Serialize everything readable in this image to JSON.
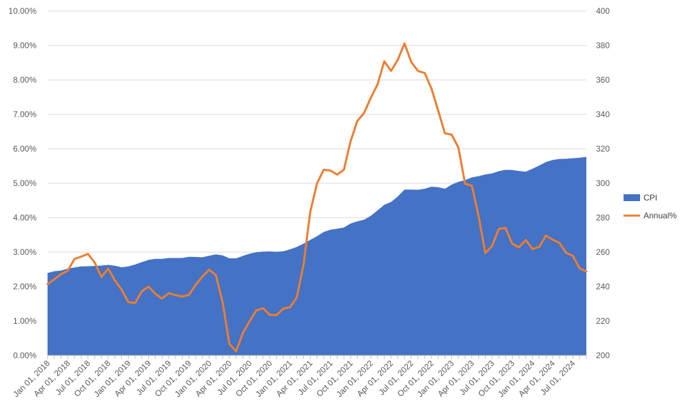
{
  "chart_data": {
    "type": "area",
    "x": [
      "Jan 01, 2018",
      "Feb 01, 2018",
      "Mar 01, 2018",
      "Apr 01, 2018",
      "May 01, 2018",
      "Jun 01, 2018",
      "Jul 01, 2018",
      "Aug 01, 2018",
      "Sep 01, 2018",
      "Oct 01, 2018",
      "Nov 01, 2018",
      "Dec 01, 2018",
      "Jan 01, 2019",
      "Feb 01, 2019",
      "Mar 01, 2019",
      "Apr 01, 2019",
      "May 01, 2019",
      "Jun 01, 2019",
      "Jul 01, 2019",
      "Aug 01, 2019",
      "Sep 01, 2019",
      "Oct 01, 2019",
      "Nov 01, 2019",
      "Dec 01, 2019",
      "Jan 01, 2020",
      "Feb 01, 2020",
      "Mar 01, 2020",
      "Apr 01, 2020",
      "May 01, 2020",
      "Jun 01, 2020",
      "Jul 01, 2020",
      "Aug 01, 2020",
      "Sep 01, 2020",
      "Oct 01, 2020",
      "Nov 01, 2020",
      "Dec 01, 2020",
      "Jan 01, 2021",
      "Feb 01, 2021",
      "Mar 01, 2021",
      "Apr 01, 2021",
      "May 01, 2021",
      "Jun 01, 2021",
      "Jul 01, 2021",
      "Aug 01, 2021",
      "Sep 01, 2021",
      "Oct 01, 2021",
      "Nov 01, 2021",
      "Dec 01, 2021",
      "Jan 01, 2022",
      "Feb 01, 2022",
      "Mar 01, 2022",
      "Apr 01, 2022",
      "May 01, 2022",
      "Jun 01, 2022",
      "Jul 01, 2022",
      "Aug 01, 2022",
      "Sep 01, 2022",
      "Oct 01, 2022",
      "Nov 01, 2022",
      "Dec 01, 2022",
      "Jan 01, 2023",
      "Feb 01, 2023",
      "Mar 01, 2023",
      "Apr 01, 2023",
      "May 01, 2023",
      "Jun 01, 2023",
      "Jul 01, 2023",
      "Aug 01, 2023",
      "Sep 01, 2023",
      "Oct 01, 2023",
      "Nov 01, 2023",
      "Dec 01, 2023",
      "Jan 01, 2024",
      "Feb 01, 2024",
      "Mar 01, 2024",
      "Apr 01, 2024",
      "May 01, 2024",
      "Jun 01, 2024",
      "Jul 01, 2024",
      "Aug 01, 2024",
      "Sep 01, 2024"
    ],
    "x_tick_labels": [
      "Jan 01, 2018",
      "Apr 01, 2018",
      "Jul 01, 2018",
      "Oct 01, 2018",
      "Jan 01, 2019",
      "Apr 01, 2019",
      "Jul 01, 2019",
      "Oct 01, 2019",
      "Jan 01, 2020",
      "Apr 01, 2020",
      "Jul 01, 2020",
      "Oct 01, 2020",
      "Jan 01, 2021",
      "Apr 01, 2021",
      "Jul 01, 2021",
      "Oct 01, 2021",
      "Jan 01, 2022",
      "Apr 01, 2022",
      "Jul 01, 2022",
      "Oct 01, 2022",
      "Jan 01, 2023",
      "Apr 01, 2023",
      "Jul 01, 2023",
      "Oct 01, 2023",
      "Jan 01, 2024",
      "Apr 01, 2024",
      "Jul 01, 2024"
    ],
    "series": [
      {
        "name": "CPI",
        "type": "area",
        "axis": "right",
        "color": "#4472C4",
        "values": [
          247.9,
          248.9,
          249.3,
          250.4,
          251.1,
          251.7,
          251.8,
          252.0,
          252.2,
          252.6,
          252.1,
          251.2,
          251.7,
          252.8,
          254.2,
          255.5,
          256.1,
          256.1,
          256.6,
          256.6,
          256.6,
          257.3,
          257.2,
          257.0,
          257.9,
          258.7,
          258.1,
          256.4,
          256.4,
          257.8,
          259.1,
          259.9,
          260.3,
          260.4,
          260.2,
          260.5,
          261.6,
          263.0,
          264.9,
          267.1,
          269.2,
          271.7,
          273.0,
          273.6,
          274.3,
          276.6,
          277.9,
          278.8,
          281.1,
          284.2,
          287.5,
          289.1,
          292.3,
          296.3,
          296.3,
          296.2,
          296.8,
          298.0,
          297.7,
          296.8,
          299.2,
          300.8,
          301.8,
          303.4,
          304.1,
          305.1,
          305.7,
          307.0,
          307.8,
          307.7,
          307.1,
          306.7,
          308.4,
          310.3,
          312.3,
          313.5,
          314.1,
          314.2,
          314.5,
          314.8,
          315.3
        ]
      },
      {
        "name": "Annual%",
        "type": "line",
        "axis": "left",
        "color": "#ED7D31",
        "values": [
          2.07,
          2.21,
          2.36,
          2.46,
          2.8,
          2.87,
          2.95,
          2.7,
          2.28,
          2.52,
          2.18,
          1.91,
          1.55,
          1.52,
          1.86,
          2.0,
          1.79,
          1.65,
          1.81,
          1.75,
          1.71,
          1.76,
          2.05,
          2.29,
          2.49,
          2.33,
          1.54,
          0.33,
          0.12,
          0.65,
          0.99,
          1.31,
          1.37,
          1.18,
          1.17,
          1.36,
          1.4,
          1.68,
          2.62,
          4.16,
          4.99,
          5.39,
          5.37,
          5.25,
          5.39,
          6.22,
          6.81,
          7.04,
          7.48,
          7.87,
          8.54,
          8.26,
          8.58,
          9.06,
          8.52,
          8.26,
          8.2,
          7.75,
          7.11,
          6.45,
          6.41,
          6.04,
          4.98,
          4.93,
          4.05,
          2.97,
          3.18,
          3.67,
          3.7,
          3.24,
          3.14,
          3.35,
          3.09,
          3.15,
          3.48,
          3.36,
          3.27,
          2.98,
          2.89,
          2.53,
          2.44
        ]
      }
    ],
    "y_left": {
      "min": 0,
      "max": 10,
      "tick_labels": [
        "0.00%",
        "1.00%",
        "2.00%",
        "3.00%",
        "4.00%",
        "5.00%",
        "6.00%",
        "7.00%",
        "8.00%",
        "9.00%",
        "10.00%"
      ]
    },
    "y_right": {
      "min": 200,
      "max": 400,
      "tick_labels": [
        "200",
        "220",
        "240",
        "260",
        "280",
        "300",
        "320",
        "340",
        "360",
        "380",
        "400"
      ]
    },
    "grid": true,
    "legend_position": "right",
    "title": "",
    "xlabel": "",
    "ylabel": ""
  },
  "colors": {
    "area": "#4472C4",
    "line": "#ED7D31",
    "grid": "#D9D9D9",
    "text": "#595959"
  }
}
